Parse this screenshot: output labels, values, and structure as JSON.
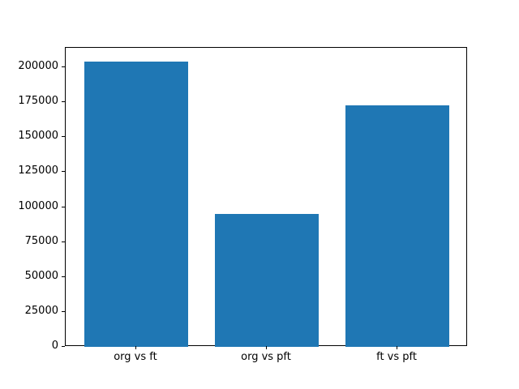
{
  "figure": {
    "background": "#ffffff",
    "frame_color": "#000000",
    "tick_color": "#000000",
    "text_color": "#000000"
  },
  "chart_data": {
    "type": "bar",
    "title": "",
    "xlabel": "",
    "ylabel": "",
    "categories": [
      "org vs ft",
      "org vs pft",
      "ft vs pft"
    ],
    "values": [
      204000,
      95000,
      173000
    ],
    "bar_color": "#1f77b4",
    "bar_width_data_units": 0.8,
    "yticks": [
      0,
      25000,
      50000,
      75000,
      100000,
      125000,
      150000,
      175000,
      200000
    ],
    "ylim": [
      0,
      214000
    ],
    "xlim": [
      -0.54,
      2.54
    ],
    "grid": false,
    "legend_position": "none"
  }
}
